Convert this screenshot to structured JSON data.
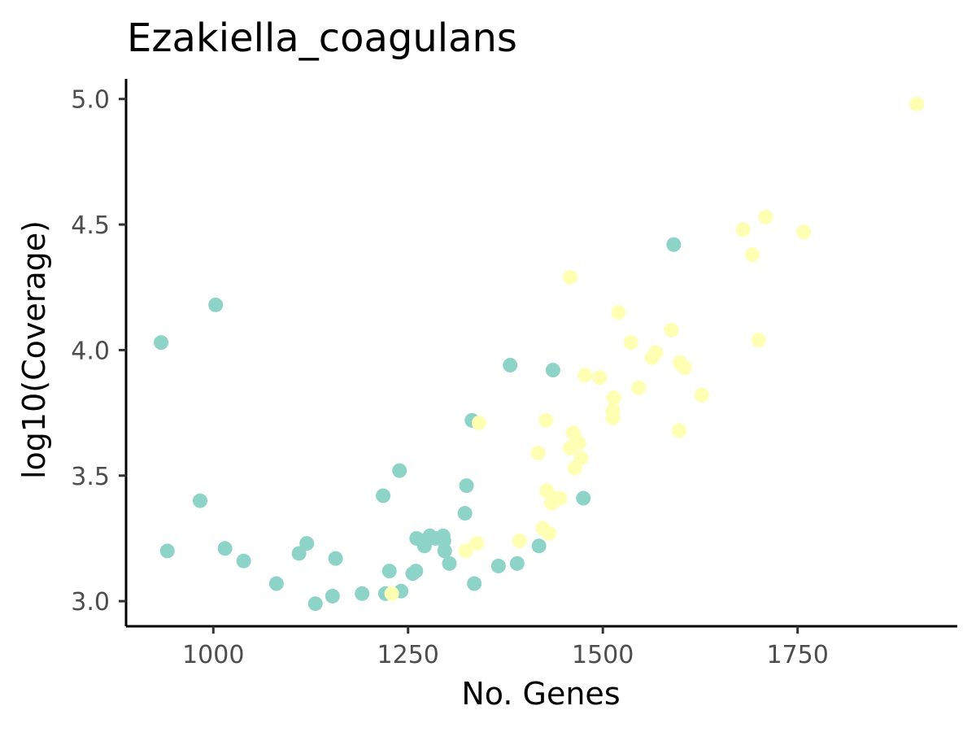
{
  "chart_data": {
    "type": "scatter",
    "title": "Ezakiella_coagulans",
    "xlabel": "No. Genes",
    "ylabel": "log10(Coverage)",
    "xlim": [
      888,
      1955
    ],
    "ylim": [
      2.9,
      5.08
    ],
    "x_ticks": [
      1000,
      1250,
      1500,
      1750
    ],
    "y_ticks": [
      3.0,
      3.5,
      4.0,
      4.5,
      5.0
    ],
    "x_tick_labels": [
      "1000",
      "1250",
      "1500",
      "1750"
    ],
    "y_tick_labels": [
      "3.0",
      "3.5",
      "4.0",
      "4.5",
      "5.0"
    ],
    "grid": false,
    "legend": "none",
    "series": [
      {
        "color": "#8dd3c7",
        "points": [
          [
            933,
            4.03
          ],
          [
            941,
            3.2
          ],
          [
            983,
            3.4
          ],
          [
            1003,
            4.18
          ],
          [
            1015,
            3.21
          ],
          [
            1039,
            3.16
          ],
          [
            1081,
            3.07
          ],
          [
            1110,
            3.19
          ],
          [
            1120,
            3.23
          ],
          [
            1131,
            2.99
          ],
          [
            1153,
            3.02
          ],
          [
            1157,
            3.17
          ],
          [
            1191,
            3.03
          ],
          [
            1218,
            3.42
          ],
          [
            1221,
            3.03
          ],
          [
            1226,
            3.12
          ],
          [
            1239,
            3.52
          ],
          [
            1241,
            3.04
          ],
          [
            1256,
            3.11
          ],
          [
            1260,
            3.12
          ],
          [
            1261,
            3.25
          ],
          [
            1269,
            3.24
          ],
          [
            1271,
            3.22
          ],
          [
            1278,
            3.26
          ],
          [
            1285,
            3.25
          ],
          [
            1295,
            3.26
          ],
          [
            1296,
            3.24
          ],
          [
            1297,
            3.2
          ],
          [
            1303,
            3.15
          ],
          [
            1323,
            3.35
          ],
          [
            1325,
            3.46
          ],
          [
            1332,
            3.72
          ],
          [
            1335,
            3.07
          ],
          [
            1366,
            3.14
          ],
          [
            1381,
            3.94
          ],
          [
            1390,
            3.15
          ],
          [
            1418,
            3.22
          ],
          [
            1436,
            3.92
          ],
          [
            1475,
            3.41
          ],
          [
            1591,
            4.42
          ]
        ]
      },
      {
        "color": "#ffffb3",
        "points": [
          [
            1229,
            3.03
          ],
          [
            1324,
            3.2
          ],
          [
            1338,
            3.23
          ],
          [
            1341,
            3.71
          ],
          [
            1393,
            3.24
          ],
          [
            1417,
            3.59
          ],
          [
            1423,
            3.29
          ],
          [
            1427,
            3.72
          ],
          [
            1428,
            3.44
          ],
          [
            1431,
            3.27
          ],
          [
            1434,
            3.39
          ],
          [
            1436,
            3.41
          ],
          [
            1445,
            3.41
          ],
          [
            1458,
            4.29
          ],
          [
            1458,
            3.61
          ],
          [
            1462,
            3.67
          ],
          [
            1464,
            3.53
          ],
          [
            1469,
            3.63
          ],
          [
            1472,
            3.57
          ],
          [
            1477,
            3.9
          ],
          [
            1496,
            3.89
          ],
          [
            1513,
            3.76
          ],
          [
            1513,
            3.73
          ],
          [
            1514,
            3.81
          ],
          [
            1520,
            4.15
          ],
          [
            1536,
            4.03
          ],
          [
            1546,
            3.85
          ],
          [
            1563,
            3.97
          ],
          [
            1568,
            3.99
          ],
          [
            1588,
            4.08
          ],
          [
            1598,
            3.68
          ],
          [
            1599,
            3.95
          ],
          [
            1605,
            3.93
          ],
          [
            1627,
            3.82
          ],
          [
            1680,
            4.48
          ],
          [
            1692,
            4.38
          ],
          [
            1700,
            4.04
          ],
          [
            1709,
            4.53
          ],
          [
            1758,
            4.47
          ],
          [
            1903,
            4.98
          ]
        ]
      }
    ]
  }
}
